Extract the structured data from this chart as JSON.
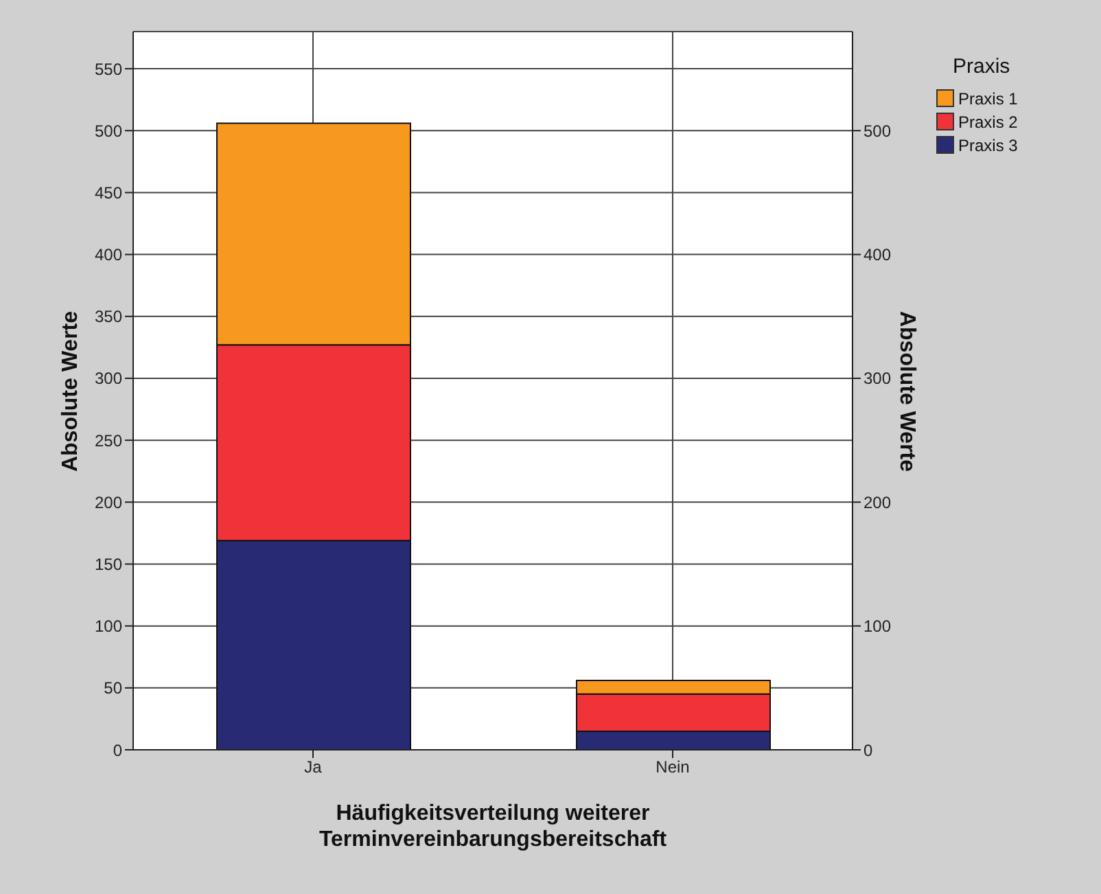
{
  "chart_data": {
    "type": "bar",
    "stacked": true,
    "xlabel": "Häufigkeitsverteilung weiterer Terminvereinbarungsbereitschaft",
    "ylabel": "Absolute Werte",
    "y2label": "Absolute Werte",
    "legend_title": "Praxis",
    "categories": [
      "Ja",
      "Nein"
    ],
    "series": [
      {
        "name": "Praxis 3",
        "color": "#282a74",
        "values": [
          169,
          15
        ]
      },
      {
        "name": "Praxis 2",
        "color": "#ef3339",
        "values": [
          158,
          30
        ]
      },
      {
        "name": "Praxis 1",
        "color": "#f7991f",
        "values": [
          179,
          11
        ]
      }
    ],
    "ylim": [
      0,
      580
    ],
    "yticks": [
      0,
      50,
      100,
      150,
      200,
      250,
      300,
      350,
      400,
      450,
      500,
      550
    ],
    "y2lim": [
      0,
      580
    ],
    "y2ticks": [
      0,
      100,
      200,
      300,
      400,
      500
    ],
    "grid": true,
    "legend": "top right"
  }
}
